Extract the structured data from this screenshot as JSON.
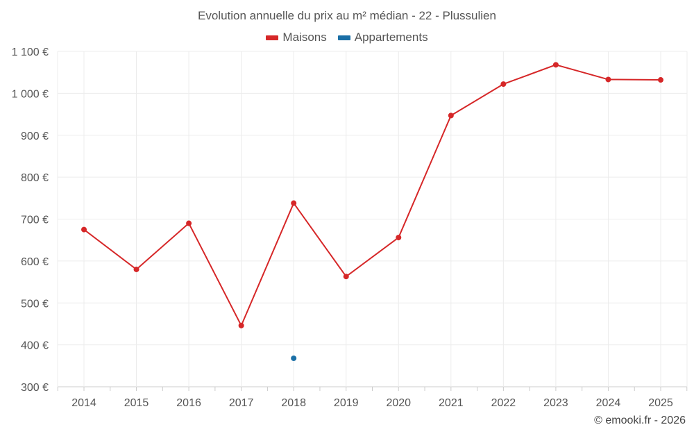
{
  "chart_data": {
    "type": "line",
    "title": "Evolution annuelle du prix au m² médian - 22 - Plussulien",
    "xlabel": "",
    "ylabel": "",
    "categories": [
      "2014",
      "2015",
      "2016",
      "2017",
      "2018",
      "2019",
      "2020",
      "2021",
      "2022",
      "2023",
      "2024",
      "2025"
    ],
    "ylim": [
      300,
      1100
    ],
    "yticks": [
      300,
      400,
      500,
      600,
      700,
      800,
      900,
      1000,
      1100
    ],
    "ytick_labels": [
      "300 €",
      "400 €",
      "500 €",
      "600 €",
      "700 €",
      "800 €",
      "900 €",
      "1 000 €",
      "1 100 €"
    ],
    "grid": true,
    "legend_position": "top-center",
    "series": [
      {
        "name": "Maisons",
        "color": "#d62728",
        "values": [
          675,
          580,
          690,
          446,
          738,
          563,
          656,
          947,
          1022,
          1068,
          1033,
          1032
        ]
      },
      {
        "name": "Appartements",
        "color": "#1a6fa6",
        "values": [
          null,
          null,
          null,
          null,
          368,
          null,
          null,
          null,
          null,
          null,
          null,
          null
        ]
      }
    ]
  },
  "credit": "© emooki.fr - 2026"
}
